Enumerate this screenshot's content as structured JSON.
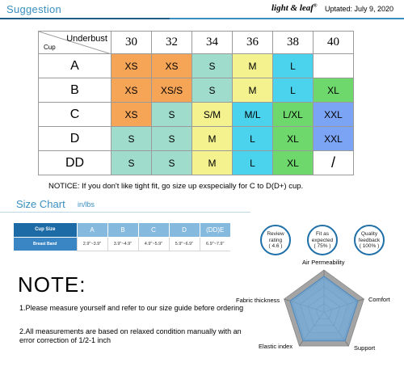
{
  "header": {
    "title": "Suggestion",
    "brand": "light & leaf",
    "brand_mark": "®",
    "updated": "Uptated: July 9, 2020"
  },
  "size_table": {
    "corner_cup": "Cup",
    "corner_underbust": "Underbust",
    "underbust": [
      "30",
      "32",
      "34",
      "36",
      "38",
      "40"
    ],
    "rows": [
      {
        "cup": "A",
        "cells": [
          "XS",
          "XS",
          "S",
          "M",
          "L",
          ""
        ]
      },
      {
        "cup": "B",
        "cells": [
          "XS",
          "XS/S",
          "S",
          "M",
          "L",
          "XL"
        ]
      },
      {
        "cup": "C",
        "cells": [
          "XS",
          "S",
          "S/M",
          "M/L",
          "L/XL",
          "XXL"
        ]
      },
      {
        "cup": "D",
        "cells": [
          "S",
          "S",
          "M",
          "L",
          "XL",
          "XXL"
        ]
      },
      {
        "cup": "DD",
        "cells": [
          "S",
          "S",
          "M",
          "L",
          "XL",
          "/"
        ]
      }
    ],
    "colors": {
      "orange": "#f6a456",
      "teal": "#9fdccb",
      "yellow": "#f4f28f",
      "cyan": "#4bd3ee",
      "green": "#6fd86c",
      "blue": "#7ca4f5"
    }
  },
  "notice": "NOTICE: If you don't like tight fit, go size up exspecially for C to D(D+) cup.",
  "size_chart": {
    "title": "Size Chart",
    "unit": "in/lbs",
    "header_label": "Cup Size",
    "row_label": "Breast Band",
    "cups": [
      "A",
      "B",
      "C",
      "D",
      "(DD)E"
    ],
    "bands": [
      "2.9\"~3.9\"",
      "3.9\"~4.9\"",
      "4.9\"~5.9\"",
      "5.9\"~6.9\"",
      "6.9\"~7.9\""
    ]
  },
  "badges": [
    {
      "line1": "Review",
      "line2": "rating",
      "line3": "( 4.6 )"
    },
    {
      "line1": "Fit as",
      "line2": "expected",
      "line3": "( 75% )"
    },
    {
      "line1": "Quality",
      "line2": "feedback",
      "line3": "( 100% )"
    }
  ],
  "note": {
    "title": "NOTE:",
    "item1": "1.Please measure yourself and refer to our size guide before ordering",
    "item2": "2.All measurements are based on relaxed condition manually with an error correction of 1/2-1 inch"
  },
  "radar": {
    "labels": {
      "air": "Air Permeability",
      "comfort": "Comfort",
      "support": "Support",
      "elastic": "Elastic index",
      "thickness": "Fabric thickness"
    },
    "values": [
      0.85,
      0.85,
      0.85,
      0.85,
      0.85
    ],
    "fill_color": "#6fa6d6"
  }
}
